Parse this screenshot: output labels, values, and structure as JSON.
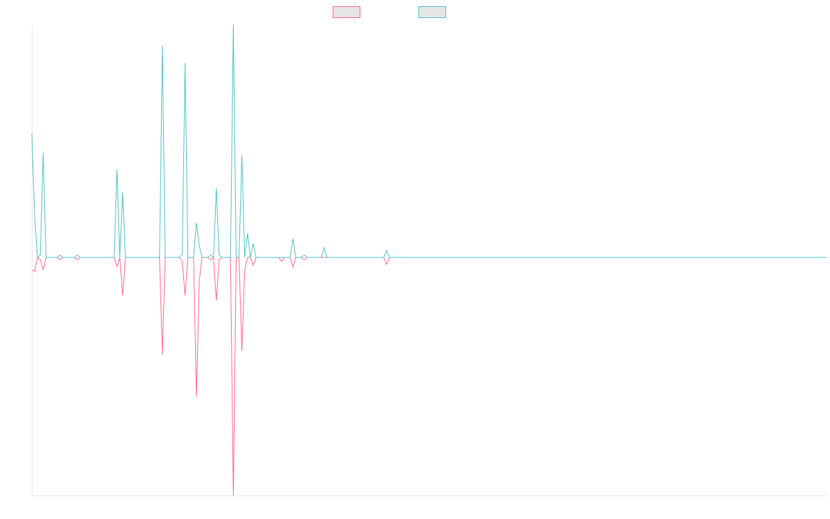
{
  "chart_data": {
    "type": "line",
    "ylim": [
      -102.4,
      100
    ],
    "series": [
      {
        "color": "#ff6384",
        "values": [
          -5.4,
          -6,
          0,
          -1,
          -5.4,
          0,
          0,
          0,
          0,
          0,
          -1,
          0,
          0,
          0,
          0,
          0,
          -1,
          0,
          0,
          0,
          0,
          0,
          0,
          0,
          0,
          0,
          0,
          0,
          0,
          0,
          -4,
          0,
          -16.4,
          0,
          0,
          0,
          0,
          0,
          0,
          0,
          0,
          0,
          0,
          0,
          0,
          0,
          -41.7,
          0,
          0,
          0,
          0,
          0,
          0,
          -1.5,
          -16.4,
          0,
          0,
          0,
          -60,
          -9.8,
          0,
          0,
          0,
          -1,
          0,
          -18.5,
          -1,
          0,
          0,
          0,
          0,
          -102.4,
          0,
          0,
          -40.2,
          -5.4,
          0,
          0,
          -3.3,
          0,
          0,
          0,
          0,
          0,
          0,
          0,
          0,
          0,
          -1.8,
          0,
          0,
          0,
          -4.2,
          0,
          0,
          0,
          -1,
          0,
          0,
          0,
          0,
          0,
          0,
          0,
          0,
          0,
          0,
          0,
          0,
          0,
          0,
          0,
          0,
          0,
          0,
          0,
          0,
          0,
          0,
          0,
          0,
          0,
          0,
          0,
          0,
          -3,
          0,
          0,
          0,
          0,
          0,
          0,
          0,
          0,
          0,
          0,
          0,
          0,
          0,
          0,
          0,
          0,
          0,
          0,
          0,
          0,
          0,
          0,
          0,
          0,
          0,
          0,
          0,
          0,
          0,
          0,
          0,
          0,
          0,
          0,
          0,
          0,
          0,
          0,
          0,
          0,
          0,
          0,
          0,
          0,
          0,
          0,
          0,
          0,
          0,
          0,
          0,
          0,
          0,
          0,
          0,
          0,
          0,
          0,
          0,
          0,
          0,
          0,
          0,
          0,
          0,
          0,
          0,
          0,
          0,
          0,
          0,
          0,
          0,
          0,
          0,
          0,
          0,
          0,
          0,
          0,
          0,
          0,
          0,
          0,
          0,
          0,
          0,
          0,
          0,
          0,
          0,
          0,
          0,
          0,
          0,
          0,
          0,
          0,
          0,
          0,
          0,
          0,
          0,
          0,
          0,
          0,
          0,
          0,
          0,
          0,
          0,
          0,
          0,
          0,
          0,
          0,
          0,
          0,
          0,
          0,
          0,
          0,
          0,
          0,
          0,
          0,
          0,
          0,
          0,
          0,
          0,
          0,
          0,
          0,
          0,
          0,
          0,
          0,
          0,
          0,
          0,
          0,
          0,
          0,
          0,
          0,
          0,
          0,
          0,
          0,
          0,
          0,
          0,
          0,
          0
        ]
      },
      {
        "color": "#4bc0c0",
        "values": [
          53.3,
          17.6,
          0,
          1,
          45,
          0,
          0,
          0,
          0,
          0,
          1,
          0,
          0,
          0,
          0,
          0,
          1,
          0,
          0,
          0,
          0,
          0,
          0,
          0,
          0,
          0,
          0,
          0,
          0,
          0,
          37.8,
          0,
          28,
          0,
          0,
          0,
          0,
          0,
          0,
          0,
          0,
          0,
          0,
          0,
          0,
          0,
          91,
          0,
          0,
          0,
          0,
          0,
          0,
          1.5,
          83.6,
          0,
          0,
          0,
          14.9,
          5,
          0,
          0,
          0,
          1,
          0,
          29.8,
          1,
          0,
          0,
          0,
          0,
          100,
          0,
          0,
          43.8,
          0,
          10.4,
          0,
          6,
          0,
          0,
          0,
          0,
          0,
          0,
          0,
          0,
          0,
          0,
          0,
          0,
          0,
          8,
          0,
          0,
          0,
          1,
          0,
          0,
          0,
          0,
          0,
          0,
          4.2,
          0,
          0,
          0,
          0,
          0,
          0,
          0,
          0,
          0,
          0,
          0,
          0,
          0,
          0,
          0,
          0,
          0,
          0,
          0,
          0,
          0,
          3,
          0,
          0,
          0,
          0,
          0,
          0,
          0,
          0,
          0,
          0,
          0,
          0,
          0,
          0,
          0,
          0,
          0,
          0,
          0,
          0,
          0,
          0,
          0,
          0,
          0,
          0,
          0,
          0,
          0,
          0,
          0,
          0,
          0,
          0,
          0,
          0,
          0,
          0,
          0,
          0,
          0,
          0,
          0,
          0,
          0,
          0,
          0,
          0,
          0,
          0,
          0,
          0,
          0,
          0,
          0,
          0,
          0,
          0,
          0,
          0,
          0,
          0,
          0,
          0,
          0,
          0,
          0,
          0,
          0,
          0,
          0,
          0,
          0,
          0,
          0,
          0,
          0,
          0,
          0,
          0,
          0,
          0,
          0,
          0,
          0,
          0,
          0,
          0,
          0,
          0,
          0,
          0,
          0,
          0,
          0,
          0,
          0,
          0,
          0,
          0,
          0,
          0,
          0,
          0,
          0,
          0,
          0,
          0,
          0,
          0,
          0,
          0,
          0,
          0,
          0,
          0,
          0,
          0,
          0,
          0,
          0,
          0,
          0,
          0,
          0,
          0,
          0,
          0,
          0,
          0,
          0,
          0,
          0,
          0,
          0,
          0,
          0,
          0,
          0,
          0,
          0,
          0,
          0,
          0,
          0,
          0,
          0,
          0,
          0,
          0,
          0,
          0,
          0,
          0,
          0
        ]
      }
    ]
  }
}
